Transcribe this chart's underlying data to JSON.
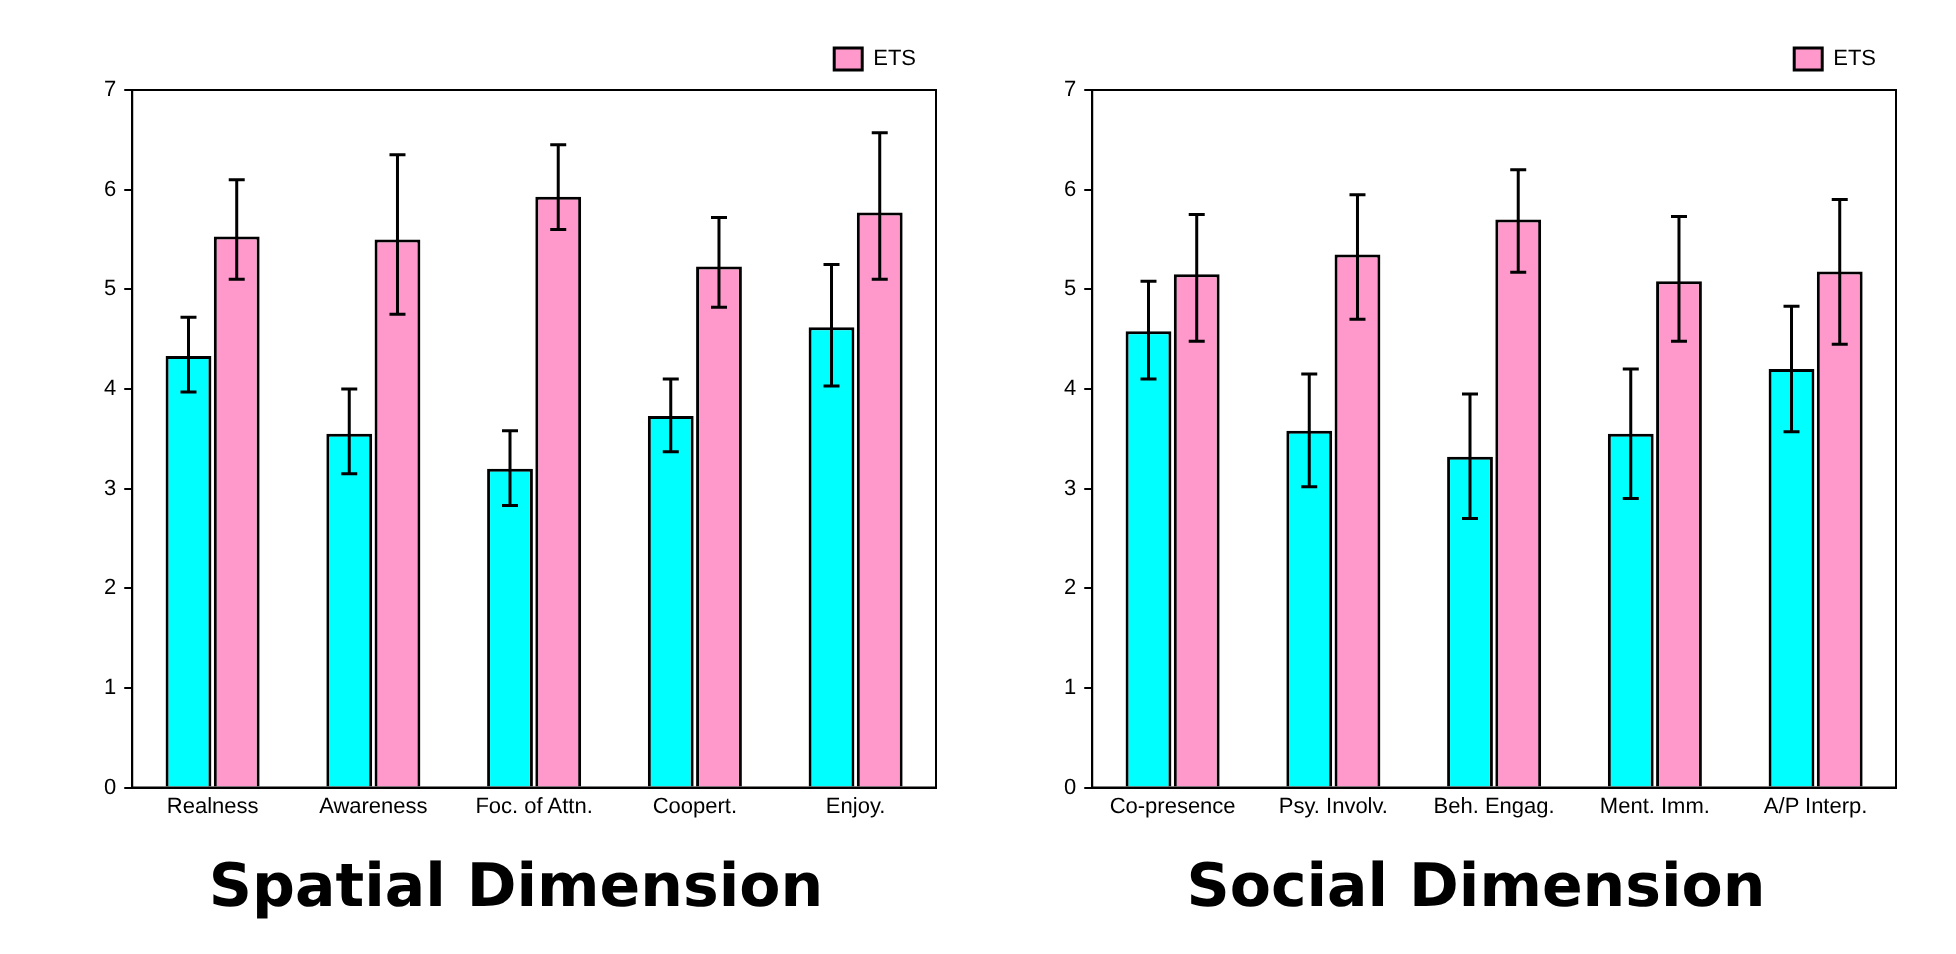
{
  "chart_data": [
    {
      "type": "bar",
      "title": "Spatial Dimension",
      "categories": [
        "Realness",
        "Awareness",
        "Foc. of Attn.",
        "Coopert.",
        "Enjoy."
      ],
      "series": [
        {
          "color": "#00ffff",
          "values": [
            4.33,
            3.55,
            3.2,
            3.73,
            4.62
          ],
          "errors": [
            [
              3.97,
              4.72
            ],
            [
              3.15,
              4.0
            ],
            [
              2.83,
              3.58
            ],
            [
              3.37,
              4.1
            ],
            [
              4.03,
              5.25
            ]
          ]
        },
        {
          "name": "ETS",
          "color": "#ff99cc",
          "values": [
            5.53,
            5.5,
            5.93,
            5.23,
            5.77
          ],
          "errors": [
            [
              5.1,
              6.1
            ],
            [
              4.75,
              6.35
            ],
            [
              5.6,
              6.45
            ],
            [
              4.82,
              5.72
            ],
            [
              5.1,
              6.57
            ]
          ]
        }
      ],
      "ylim": [
        0,
        7
      ],
      "yticks": [
        0,
        1,
        2,
        3,
        4,
        5,
        6,
        7
      ],
      "grid": false,
      "legend": "top right"
    },
    {
      "type": "bar",
      "title": "Social Dimension",
      "categories": [
        "Co-presence",
        "Psy. Involv.",
        "Beh. Engag.",
        "Ment. Imm.",
        "A/P Interp."
      ],
      "series": [
        {
          "color": "#00ffff",
          "values": [
            4.58,
            3.58,
            3.32,
            3.55,
            4.2
          ],
          "errors": [
            [
              4.1,
              5.08
            ],
            [
              3.02,
              4.15
            ],
            [
              2.7,
              3.95
            ],
            [
              2.9,
              4.2
            ],
            [
              3.57,
              4.83
            ]
          ]
        },
        {
          "name": "ETS",
          "color": "#ff99cc",
          "values": [
            5.15,
            5.35,
            5.7,
            5.08,
            5.18
          ],
          "errors": [
            [
              4.48,
              5.75
            ],
            [
              4.7,
              5.95
            ],
            [
              5.17,
              6.2
            ],
            [
              4.48,
              5.73
            ],
            [
              4.45,
              5.9
            ]
          ]
        }
      ],
      "ylim": [
        0,
        7
      ],
      "yticks": [
        0,
        1,
        2,
        3,
        4,
        5,
        6,
        7
      ],
      "grid": false,
      "legend": "top right"
    }
  ]
}
